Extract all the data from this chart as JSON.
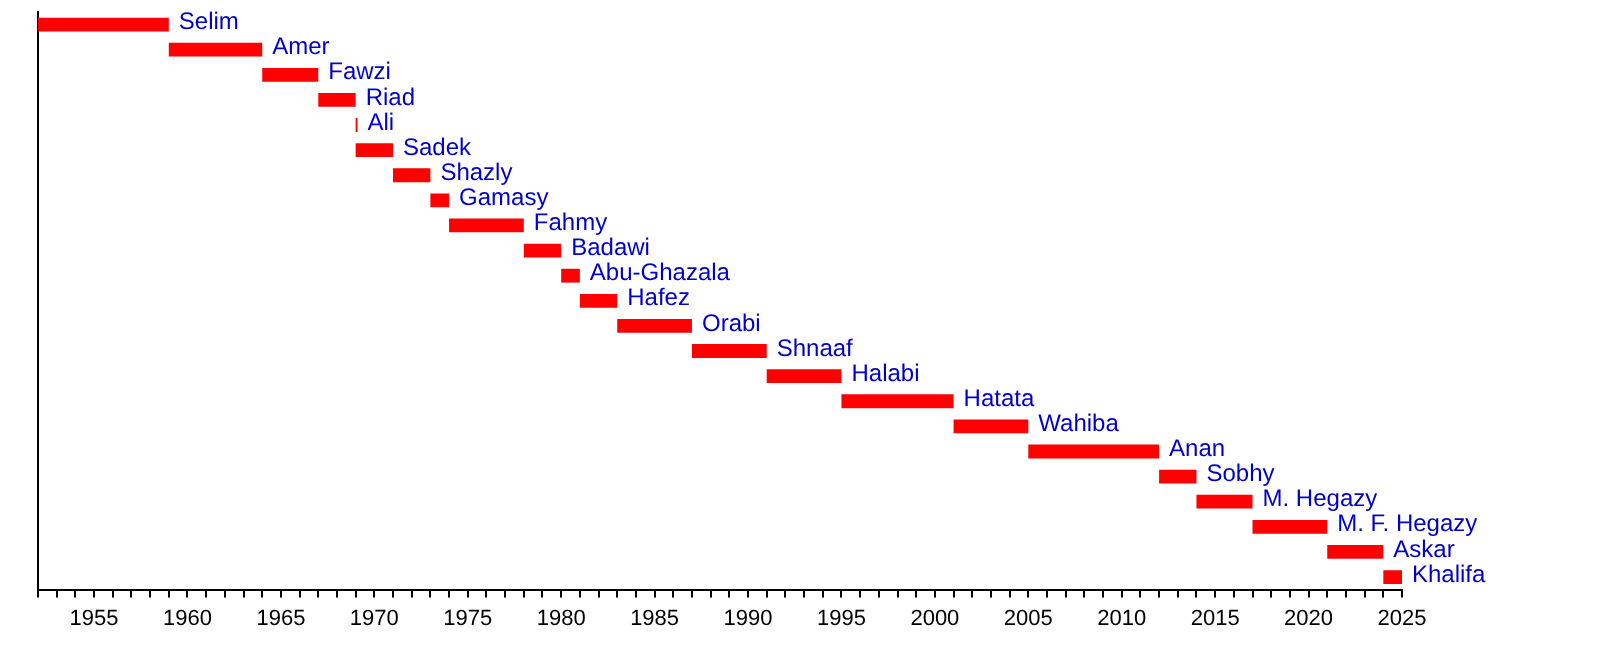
{
  "chart_data": {
    "type": "bar",
    "orientation": "horizontal",
    "color": "#ff0000",
    "categories": [
      "Selim",
      "Amer",
      "Fawzi",
      "Riad",
      "Ali",
      "Sadek",
      "Shazly",
      "Gamasy",
      "Fahmy",
      "Badawi",
      "Abu-Ghazala",
      "Hafez",
      "Orabi",
      "Shnaaf",
      "Halabi",
      "Hatata",
      "Wahiba",
      "Anan",
      "Sobhy",
      "M. Hegazy",
      "M. F. Hegazy",
      "Askar",
      "Khalifa"
    ],
    "base": [
      1952,
      1959,
      1964,
      1967,
      1969,
      1969,
      1971,
      1973,
      1974,
      1978,
      1980,
      1981,
      1983,
      1987,
      1991,
      1995,
      2001,
      2005,
      2012,
      2014,
      2017,
      2021,
      2024
    ],
    "values": [
      7,
      5,
      3,
      2,
      0.1,
      2,
      2,
      1,
      4,
      2,
      1,
      2,
      4,
      4,
      4,
      6,
      4,
      7,
      2,
      3,
      4,
      3,
      1
    ],
    "xlim": [
      1952,
      2025
    ],
    "xticks": [
      {
        "value": 1952,
        "label": null
      },
      {
        "value": 1953,
        "label": null
      },
      {
        "value": 1954,
        "label": null
      },
      1955,
      {
        "value": 1956,
        "label": null
      },
      {
        "value": 1957,
        "label": null
      },
      {
        "value": 1958,
        "label": null
      },
      {
        "value": 1959,
        "label": null
      },
      1960,
      {
        "value": 1961,
        "label": null
      },
      {
        "value": 1962,
        "label": null
      },
      {
        "value": 1963,
        "label": null
      },
      {
        "value": 1964,
        "label": null
      },
      1965,
      {
        "value": 1966,
        "label": null
      },
      {
        "value": 1967,
        "label": null
      },
      {
        "value": 1968,
        "label": null
      },
      {
        "value": 1969,
        "label": null
      },
      1970,
      {
        "value": 1971,
        "label": null
      },
      {
        "value": 1972,
        "label": null
      },
      {
        "value": 1973,
        "label": null
      },
      {
        "value": 1974,
        "label": null
      },
      1975,
      {
        "value": 1976,
        "label": null
      },
      {
        "value": 1977,
        "label": null
      },
      {
        "value": 1978,
        "label": null
      },
      {
        "value": 1979,
        "label": null
      },
      1980,
      {
        "value": 1981,
        "label": null
      },
      {
        "value": 1982,
        "label": null
      },
      {
        "value": 1983,
        "label": null
      },
      {
        "value": 1984,
        "label": null
      },
      1985,
      {
        "value": 1986,
        "label": null
      },
      {
        "value": 1987,
        "label": null
      },
      {
        "value": 1988,
        "label": null
      },
      {
        "value": 1989,
        "label": null
      },
      1990,
      {
        "value": 1991,
        "label": null
      },
      {
        "value": 1992,
        "label": null
      },
      {
        "value": 1993,
        "label": null
      },
      {
        "value": 1994,
        "label": null
      },
      1995,
      {
        "value": 1996,
        "label": null
      },
      {
        "value": 1997,
        "label": null
      },
      {
        "value": 1998,
        "label": null
      },
      {
        "value": 1999,
        "label": null
      },
      2000,
      {
        "value": 2001,
        "label": null
      },
      {
        "value": 2002,
        "label": null
      },
      {
        "value": 2003,
        "label": null
      },
      {
        "value": 2004,
        "label": null
      },
      2005,
      {
        "value": 2006,
        "label": null
      },
      {
        "value": 2007,
        "label": null
      },
      {
        "value": 2008,
        "label": null
      },
      {
        "value": 2009,
        "label": null
      },
      2010,
      {
        "value": 2011,
        "label": null
      },
      {
        "value": 2012,
        "label": null
      },
      {
        "value": 2013,
        "label": null
      },
      {
        "value": 2014,
        "label": null
      },
      2015,
      {
        "value": 2016,
        "label": null
      },
      {
        "value": 2017,
        "label": null
      },
      {
        "value": 2018,
        "label": null
      },
      {
        "value": 2019,
        "label": null
      },
      2020,
      {
        "value": 2021,
        "label": null
      },
      {
        "value": 2022,
        "label": null
      },
      {
        "value": 2023,
        "label": null
      },
      {
        "value": 2024,
        "label": null
      },
      2025
    ],
    "grid": false,
    "legend": false
  }
}
